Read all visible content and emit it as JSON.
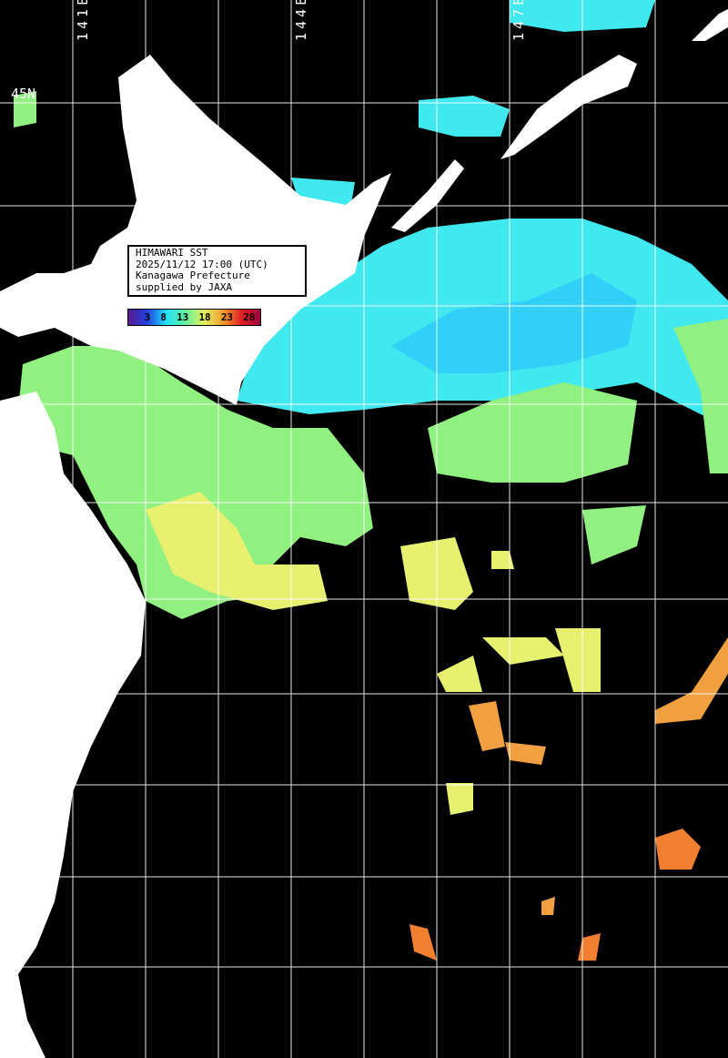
{
  "title": "HIMAWARI SST",
  "datetime": "2025/11/12 17:00 (UTC)",
  "region": "Kanagawa Prefecture",
  "credit": "supplied by JAXA",
  "colorbar": {
    "ticks": [
      "3",
      "8",
      "13",
      "18",
      "23",
      "28"
    ],
    "gradient": [
      "#5a1a8a",
      "#2040e0",
      "#20e0ff",
      "#60f0a0",
      "#e0f060",
      "#f0a030",
      "#e02020",
      "#a00040"
    ]
  },
  "grid_labels": {
    "lon": [
      "141E",
      "144E",
      "147E"
    ],
    "lat": [
      "45N"
    ]
  },
  "colors": {
    "land": "#ffffff",
    "no_data": "#000000",
    "grid": "#ffffff",
    "cold": "#40e8f0",
    "cool": "#30d0f8",
    "mild": "#90f080",
    "warm": "#e8f070",
    "hot": "#f0a040",
    "hotter": "#f08030"
  }
}
